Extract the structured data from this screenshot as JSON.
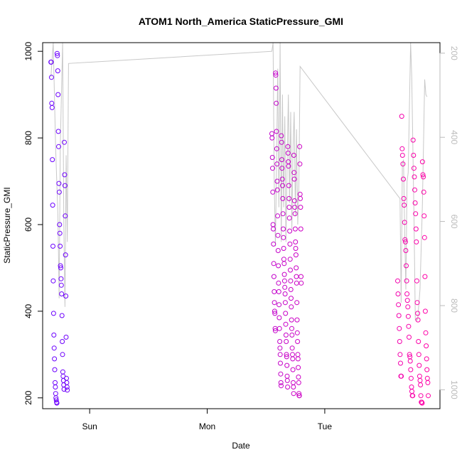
{
  "chart_data": {
    "type": "scatter",
    "title": "ATOM1 North_America StaticPressure_GMI",
    "xlabel": "Date",
    "ylabel": "StaticPressure_GMI",
    "x_ticks": [
      {
        "label": "Sun",
        "value": 0.0
      },
      {
        "label": "Mon",
        "value": 1.0
      },
      {
        "label": "Tue",
        "value": 2.0
      }
    ],
    "xlim": [
      -0.4,
      2.98
    ],
    "ylim": [
      175,
      1020
    ],
    "y_ticks": [
      200,
      400,
      600,
      800,
      1000
    ],
    "y2lim": [
      1045,
      175
    ],
    "y2_ticks": [
      200,
      400,
      600,
      800,
      1000
    ],
    "grid": false,
    "point_color_range": [
      "#6a00ff",
      "#ff00a6"
    ],
    "line_color": "#c8c8c8",
    "right_axis_color": "#bbbbbb",
    "points": [
      {
        "day": "Sun",
        "x_start": -0.33,
        "x_end": -0.19,
        "values": [
          975,
          975,
          940,
          880,
          870,
          750,
          645,
          550,
          470,
          395,
          345,
          315,
          290,
          265,
          235,
          225,
          210,
          200,
          195,
          190,
          188,
          995,
          990,
          955,
          900,
          815,
          780,
          695,
          675,
          600,
          580,
          550,
          505,
          500,
          475,
          460,
          440,
          390,
          330,
          300,
          260,
          250,
          240,
          230,
          220,
          790,
          715,
          690,
          620,
          530,
          435,
          340,
          245,
          235,
          225,
          218
        ]
      },
      {
        "day": "Mon",
        "x_start": 1.55,
        "x_end": 1.8,
        "values": [
          810,
          800,
          755,
          730,
          675,
          600,
          590,
          555,
          510,
          480,
          445,
          420,
          400,
          395,
          360,
          355,
          950,
          945,
          915,
          880,
          815,
          775,
          740,
          700,
          680,
          620,
          575,
          540,
          505,
          465,
          445,
          415,
          385,
          360,
          330,
          315,
          300,
          280,
          255,
          235,
          228,
          805,
          790,
          750,
          730,
          705,
          690,
          660,
          625,
          590,
          570,
          545,
          520,
          510,
          485,
          470,
          455,
          440,
          420,
          395,
          370,
          345,
          330,
          300,
          295,
          275,
          250,
          240,
          225,
          780,
          765,
          745,
          735,
          690,
          660,
          640,
          615,
          585,
          555,
          520,
          495,
          470,
          450,
          430,
          410,
          380,
          360,
          345,
          315,
          300,
          290,
          265,
          235,
          225,
          210,
          760,
          720,
          705,
          655,
          640,
          625,
          590,
          560,
          545,
          530,
          500,
          480,
          465,
          420,
          380,
          350,
          330,
          300,
          290,
          270,
          248,
          235,
          210,
          205,
          205,
          780,
          740,
          670,
          660,
          640,
          590,
          480,
          465
        ]
      },
      {
        "day": "Tue",
        "x_start": 2.62,
        "x_end": 2.88,
        "values": [
          470,
          440,
          415,
          390,
          360,
          330,
          300,
          280,
          250,
          250,
          850,
          775,
          760,
          740,
          705,
          660,
          645,
          605,
          565,
          560,
          540,
          505,
          470,
          440,
          425,
          410,
          388,
          365,
          340,
          300,
          295,
          285,
          265,
          245,
          225,
          215,
          205,
          205,
          795,
          760,
          730,
          710,
          680,
          650,
          625,
          590,
          560,
          470,
          420,
          395,
          380,
          330,
          300,
          275,
          250,
          240,
          230,
          205,
          190,
          190,
          188,
          745,
          715,
          710,
          675,
          620,
          570,
          480,
          400,
          350,
          320,
          290,
          265,
          245,
          235,
          205
        ]
      }
    ],
    "background_line": [
      [
        -0.33,
        940
      ],
      [
        -0.31,
        1020
      ],
      [
        -0.29,
        780
      ],
      [
        -0.27,
        620
      ],
      [
        -0.26,
        430
      ],
      [
        -0.25,
        780
      ],
      [
        -0.23,
        1020
      ],
      [
        -0.22,
        600
      ],
      [
        -0.21,
        410
      ],
      [
        -0.2,
        760
      ],
      [
        -0.19,
        560
      ],
      [
        -0.18,
        972
      ],
      [
        1.55,
        1000
      ],
      [
        1.56,
        1020
      ],
      [
        1.57,
        700
      ],
      [
        1.58,
        550
      ],
      [
        1.6,
        960
      ],
      [
        1.61,
        640
      ],
      [
        1.62,
        1020
      ],
      [
        1.63,
        560
      ],
      [
        1.64,
        900
      ],
      [
        1.65,
        640
      ],
      [
        1.66,
        850
      ],
      [
        1.67,
        560
      ],
      [
        1.68,
        740
      ],
      [
        1.69,
        900
      ],
      [
        1.7,
        650
      ],
      [
        1.71,
        860
      ],
      [
        1.72,
        590
      ],
      [
        1.73,
        780
      ],
      [
        1.74,
        860
      ],
      [
        1.75,
        620
      ],
      [
        1.76,
        820
      ],
      [
        1.77,
        600
      ],
      [
        1.78,
        690
      ],
      [
        1.79,
        965
      ],
      [
        2.64,
        660
      ],
      [
        2.65,
        420
      ],
      [
        2.66,
        740
      ],
      [
        2.67,
        750
      ],
      [
        2.68,
        580
      ],
      [
        2.69,
        450
      ],
      [
        2.7,
        700
      ],
      [
        2.71,
        720
      ],
      [
        2.72,
        870
      ],
      [
        2.73,
        1020
      ],
      [
        2.74,
        940
      ],
      [
        2.76,
        600
      ],
      [
        2.77,
        380
      ],
      [
        2.79,
        380
      ],
      [
        2.81,
        450
      ],
      [
        2.83,
        640
      ],
      [
        2.84,
        780
      ],
      [
        2.85,
        935
      ],
      [
        2.86,
        900
      ],
      [
        2.87,
        895
      ]
    ]
  }
}
